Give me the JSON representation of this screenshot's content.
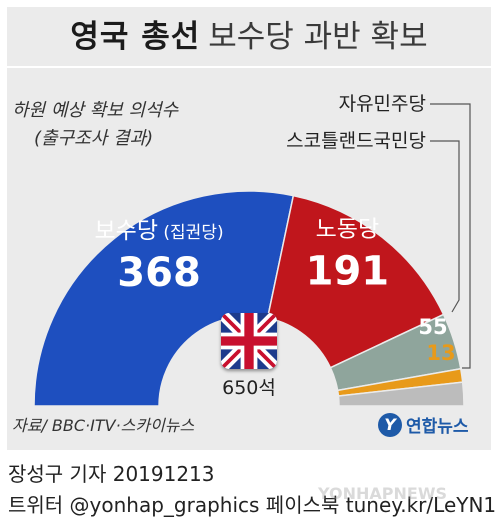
{
  "header": {
    "title": "영국 총선",
    "subtitle": "보수당 과반 확보"
  },
  "chart_data": {
    "type": "pie",
    "title": "하원 예상 확보 의석수",
    "subtitle": "(출구조사 결과)",
    "total_label": "650석",
    "total": 650,
    "slices": [
      {
        "name": "보수당",
        "note": "(집권당)",
        "value": 368,
        "color": "#1e4fbf"
      },
      {
        "name": "노동당",
        "note": "",
        "value": 191,
        "color": "#c0161c"
      },
      {
        "name": "스코틀랜드국민당",
        "note": "",
        "value": 55,
        "color": "#8fa59c"
      },
      {
        "name": "자유민주당",
        "note": "",
        "value": 13,
        "color": "#e89a1a"
      },
      {
        "name": "",
        "note": "",
        "value": 23,
        "color": "#bcbcbc"
      }
    ]
  },
  "source": "자료/ BBC·ITV·스카이뉴스",
  "logo": {
    "mark": "Y",
    "text": "연합뉴스"
  },
  "credit": {
    "line1": "장성구 기자  20191213",
    "line2": "트위터 @yonhap_graphics  페이스북 tuney.kr/LeYN1"
  },
  "watermark": "YONHAPNEWS"
}
